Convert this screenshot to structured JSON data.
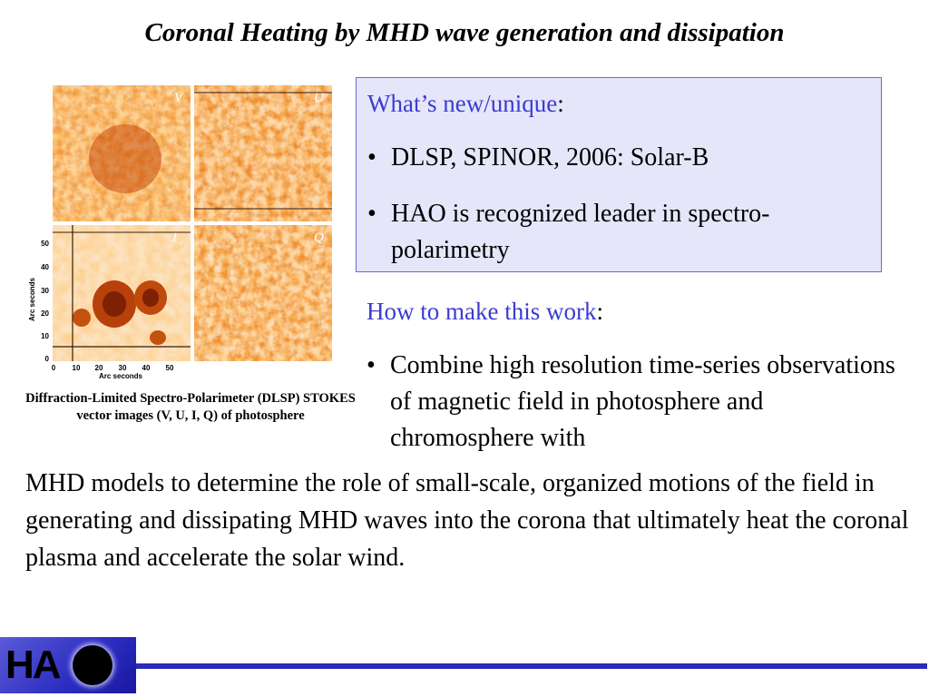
{
  "title": "Coronal Heating by MHD wave generation and dissipation",
  "figure": {
    "panel_labels": [
      "V",
      "U",
      "I",
      "c",
      "Q"
    ],
    "axis": {
      "xlabel": "Arc seconds",
      "ylabel": "Arc seconds",
      "xticks": [
        "0",
        "10",
        "20",
        "30",
        "40",
        "50"
      ],
      "yticks": [
        "0",
        "10",
        "20",
        "30",
        "40",
        "50"
      ]
    },
    "caption": "Diffraction-Limited Spectro-Polarimeter (DLSP) STOKES vector images (V, U, I, Q) of photosphere"
  },
  "whats_new": {
    "heading": "What’s new/unique",
    "colon": ":",
    "items": [
      "DLSP, SPINOR, 2006: Solar-B",
      "HAO is recognized leader in spectro-polarimetry"
    ]
  },
  "how": {
    "heading": "How to make this work",
    "colon": ":",
    "bullet_text": "Combine high resolution time-series observations of magnetic field in photosphere and chromosphere with"
  },
  "paragraph": "MHD models to determine the role of small-scale, organized motions of the field in generating and dissipating MHD waves into the corona that ultimately heat the coronal plasma and accelerate the solar wind.",
  "bullet_glyph": "•",
  "logo": {
    "text": "HA"
  },
  "colors": {
    "accent": "#3b3bd1",
    "box_bg": "#e6e6fb",
    "footer": "#2a2ab8"
  }
}
